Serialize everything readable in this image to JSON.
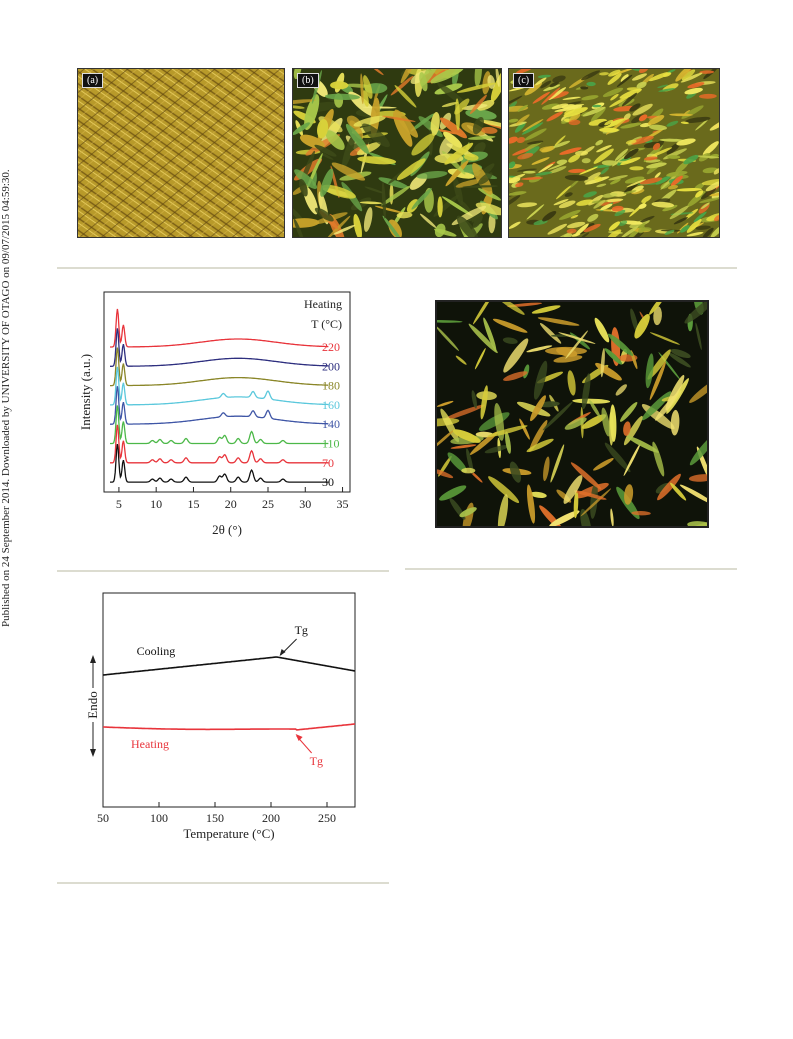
{
  "sidebar_text": "Published on 24 September 2014. Downloaded by UNIVERSITY OF OTAGO on 09/07/2015 04:59:30.",
  "micrographs": {
    "a": "(a)",
    "b": "(b)",
    "c": "(c)"
  },
  "chart_data": [
    {
      "type": "line",
      "xlabel": "2θ (°)",
      "ylabel": "Intensity (a.u.)",
      "xlim": [
        3,
        36
      ],
      "xticks": [
        5,
        10,
        15,
        20,
        25,
        30,
        35
      ],
      "legend_title_1": "Heating",
      "legend_title_2": "T (°C)",
      "series": [
        {
          "name": "220",
          "color": "#e8343b"
        },
        {
          "name": "200",
          "color": "#2e2f7f"
        },
        {
          "name": "180",
          "color": "#8a8628"
        },
        {
          "name": "160",
          "color": "#5bc8dc"
        },
        {
          "name": "140",
          "color": "#3f56a6"
        },
        {
          "name": "110",
          "color": "#4cb848"
        },
        {
          "name": "70",
          "color": "#e8343b"
        },
        {
          "name": "30",
          "color": "#111111"
        }
      ]
    },
    {
      "type": "line",
      "xlabel": "Temperature (°C)",
      "ylabel": "Endo",
      "xlim": [
        50,
        275
      ],
      "xticks": [
        50,
        100,
        150,
        200,
        250
      ],
      "series": [
        {
          "name": "Cooling",
          "color": "#111111",
          "tg_label": "Tg",
          "tg_x": 205
        },
        {
          "name": "Heating",
          "color": "#e8343b",
          "tg_label": "Tg",
          "tg_x": 222
        }
      ]
    }
  ]
}
